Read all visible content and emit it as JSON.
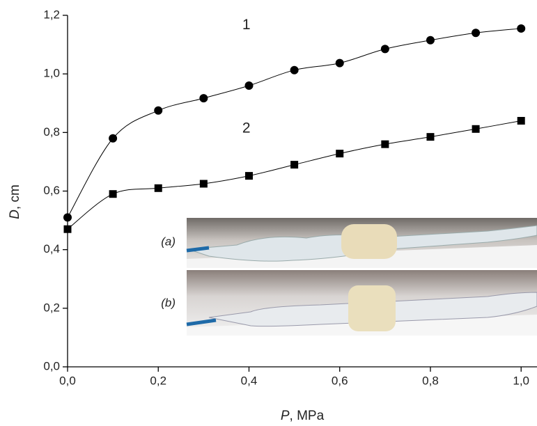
{
  "chart_data": {
    "type": "line",
    "x_label_symbol": "P",
    "x_label_unit": ", MPa",
    "y_label_symbol": "D",
    "y_label_unit": ", cm",
    "x": [
      0,
      0.1,
      0.2,
      0.3,
      0.4,
      0.5,
      0.6,
      0.7,
      0.8,
      0.9,
      1.0
    ],
    "series": [
      {
        "name": "1",
        "color": "#000000",
        "marker": "circle",
        "values": [
          0.51,
          0.78,
          0.875,
          0.917,
          0.96,
          1.013,
          1.037,
          1.085,
          1.115,
          1.14,
          1.155
        ]
      },
      {
        "name": "2",
        "color": "#000000",
        "marker": "square",
        "values": [
          0.47,
          0.59,
          0.61,
          0.625,
          0.652,
          0.69,
          0.728,
          0.76,
          0.785,
          0.812,
          0.84
        ]
      }
    ],
    "xlim": [
      0,
      1.035
    ],
    "ylim": [
      0,
      1.2
    ],
    "xticks": [
      {
        "value": 0,
        "label": "0,0"
      },
      {
        "value": 0.2,
        "label": "0,2"
      },
      {
        "value": 0.4,
        "label": "0,4"
      },
      {
        "value": 0.6,
        "label": "0,6"
      },
      {
        "value": 0.8,
        "label": "0,8"
      },
      {
        "value": 1.0,
        "label": "1,0"
      }
    ],
    "yticks": [
      {
        "value": 0,
        "label": "0,0"
      },
      {
        "value": 0.2,
        "label": "0,2"
      },
      {
        "value": 0.4,
        "label": "0,4"
      },
      {
        "value": 0.6,
        "label": "0,6"
      },
      {
        "value": 0.8,
        "label": "0,8"
      },
      {
        "value": 1.0,
        "label": "1,0"
      },
      {
        "value": 1.2,
        "label": "1,2"
      }
    ],
    "inset_labels": [
      "(a)",
      "(b)"
    ]
  }
}
